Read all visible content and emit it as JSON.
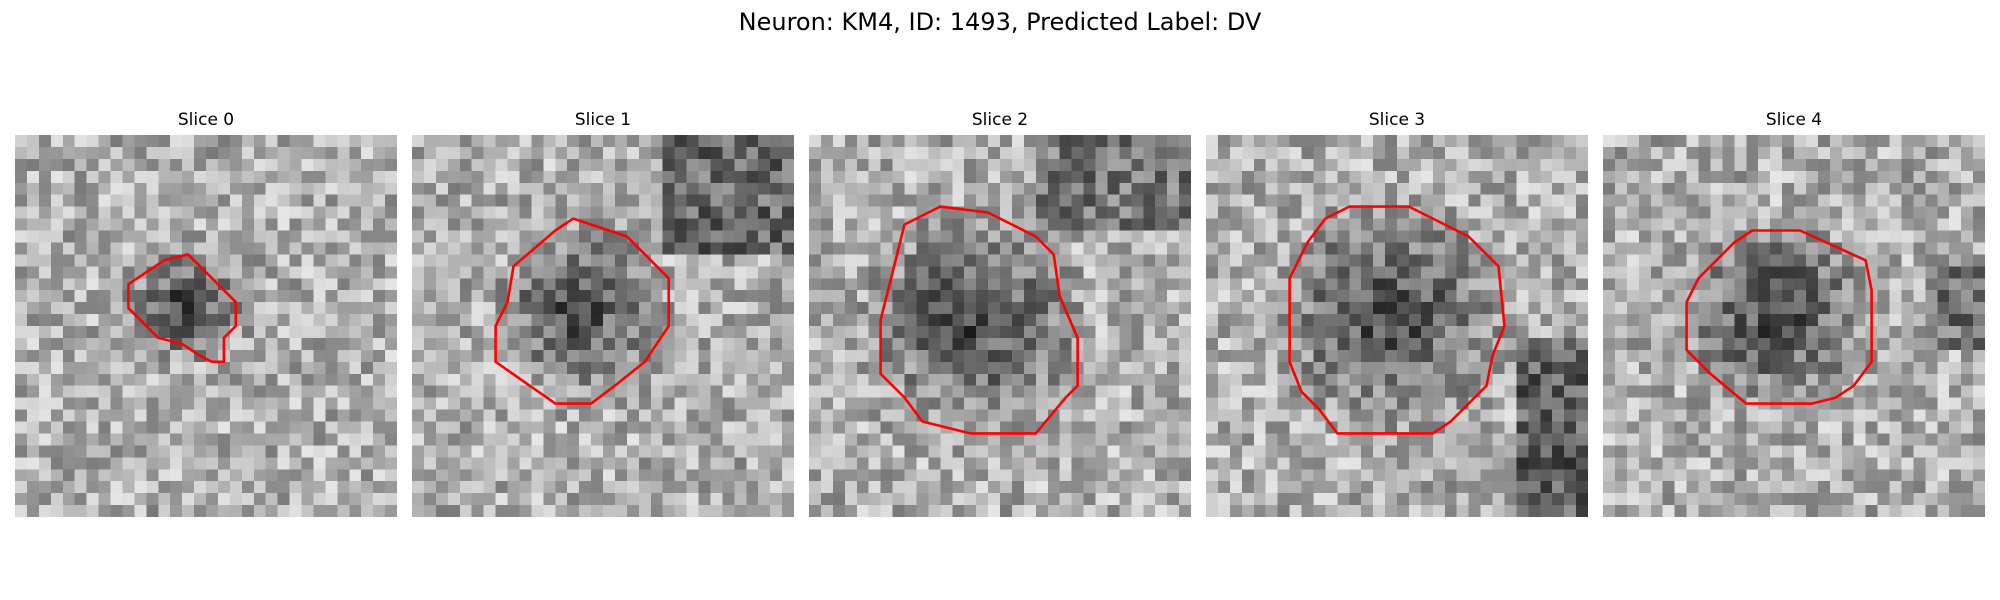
{
  "figure": {
    "title": "Neuron: KM4, ID: 1493, Predicted Label: DV",
    "contour_color": "#ff0000"
  },
  "panels": [
    {
      "title": "Slice 0"
    },
    {
      "title": "Slice 1"
    },
    {
      "title": "Slice 2"
    },
    {
      "title": "Slice 3"
    },
    {
      "title": "Slice 4"
    }
  ]
}
